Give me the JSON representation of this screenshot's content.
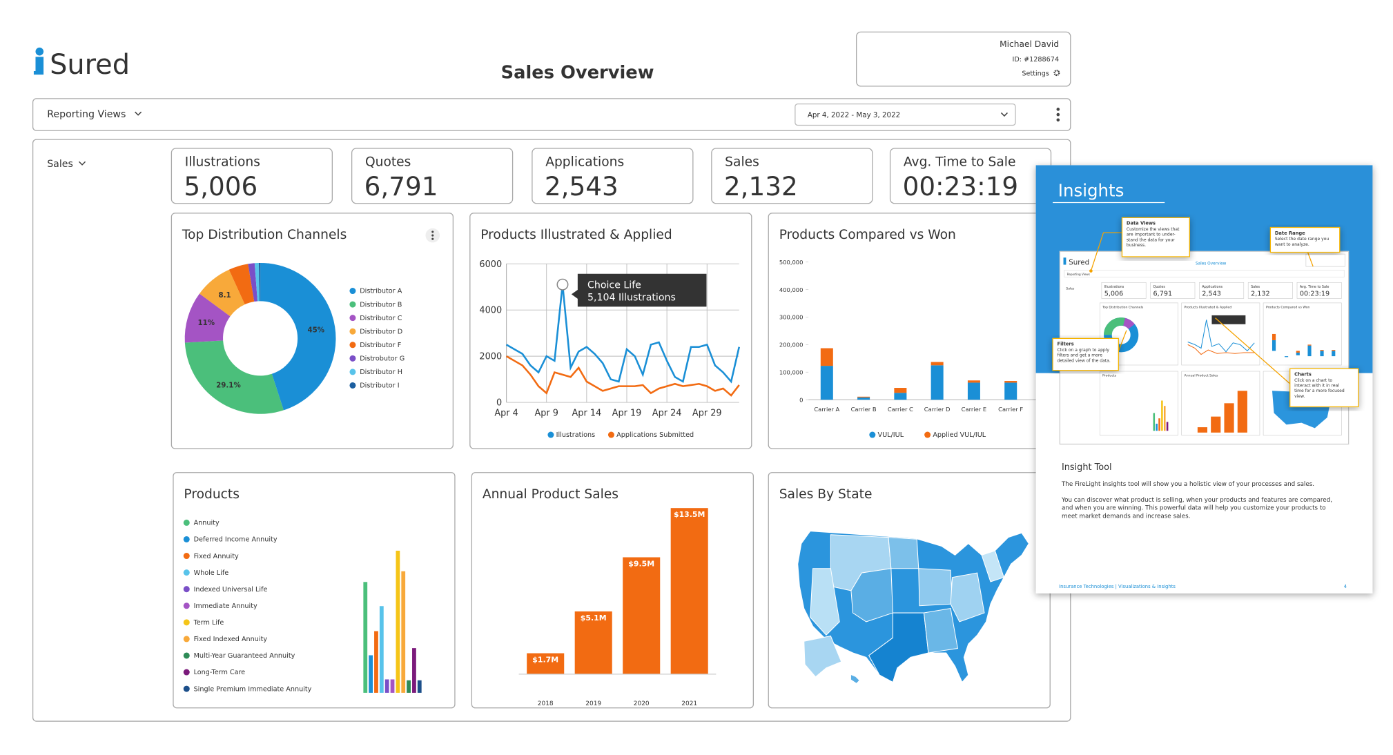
{
  "header": {
    "logo": "Sured",
    "title": "Sales Overview",
    "user_name": "Michael David",
    "user_id": "ID: #1288674",
    "settings": "Settings"
  },
  "toolbar": {
    "reporting_views": "Reporting Views",
    "date_range": "Apr 4, 2022 - May 3, 2022"
  },
  "filter": "Sales",
  "kpis": [
    {
      "label": "Illustrations",
      "value": "5,006"
    },
    {
      "label": "Quotes",
      "value": "6,791"
    },
    {
      "label": "Applications",
      "value": "2,543"
    },
    {
      "label": "Sales",
      "value": "2,132"
    },
    {
      "label": "Avg. Time to Sale",
      "value": "00:23:19"
    }
  ],
  "chart_data": [
    {
      "type": "donut",
      "title": "Top Distribution Channels",
      "categories": [
        "Distributor A",
        "Distributor B",
        "Distributor C",
        "Distributor D",
        "Distributor F",
        "Distrobutor G",
        "Distributor H",
        "Distributor I"
      ],
      "values": [
        45,
        29.1,
        11,
        8.1,
        4.2,
        1.4,
        0.9,
        0.3
      ],
      "value_labels": [
        "45%",
        "29.1%",
        "11%",
        "8.1",
        null,
        null,
        null,
        null
      ],
      "colors": [
        "#1a8fd6",
        "#4bbf7b",
        "#a454c4",
        "#f8a93a",
        "#f26b12",
        "#7a4fc7",
        "#58c3ea",
        "#1c5fa0"
      ]
    },
    {
      "type": "line",
      "title": "Products Illustrated & Applied",
      "x": [
        "Apr 4",
        null,
        null,
        null,
        null,
        "Apr 9",
        null,
        null,
        null,
        null,
        "Apr 14",
        null,
        null,
        null,
        null,
        "Apr 19",
        null,
        null,
        null,
        null,
        "Apr 24",
        null,
        null,
        null,
        null,
        "Apr 29",
        null,
        null,
        null,
        null
      ],
      "series": [
        {
          "name": "Illustrations",
          "color": "#1a8fd6",
          "values": [
            2500,
            2300,
            2100,
            1600,
            1300,
            2000,
            1800,
            5104,
            1500,
            2200,
            2400,
            2100,
            1700,
            1000,
            900,
            2300,
            2000,
            1200,
            2500,
            2600,
            1800,
            1100,
            900,
            2400,
            2400,
            2500,
            1600,
            1300,
            900,
            2400
          ]
        },
        {
          "name": "Applications Submitted",
          "color": "#f26b12",
          "values": [
            2000,
            1800,
            1600,
            1200,
            700,
            400,
            1300,
            1200,
            1100,
            1500,
            900,
            700,
            500,
            600,
            700,
            700,
            700,
            750,
            400,
            600,
            700,
            800,
            700,
            750,
            800,
            700,
            500,
            600,
            300,
            750
          ]
        }
      ],
      "ylim": [
        0,
        6000
      ],
      "yticks": [
        0,
        2000,
        4000,
        6000
      ],
      "grid": true,
      "tooltip": {
        "title": "Choice Life",
        "text": "5,104 Illustrations"
      }
    },
    {
      "type": "stacked_bar",
      "title": "Products Compared vs Won",
      "categories": [
        "Carrier A",
        "Carrier B",
        "Carrier C",
        "Carrier D",
        "Carrier E",
        "Carrier F"
      ],
      "series": [
        {
          "name": "VUL/IUL",
          "color": "#1a8fd6",
          "values": [
            123000,
            8000,
            25000,
            125000,
            62000,
            62000
          ]
        },
        {
          "name": "Applied VUL/IUL",
          "color": "#f26b12",
          "values": [
            64000,
            3000,
            18000,
            12000,
            8000,
            6000
          ]
        }
      ],
      "ylim": [
        0,
        500000
      ],
      "yticks": [
        0,
        {
          "value": 100000,
          "label": "100,000"
        },
        {
          "value": 200000,
          "label": "200,000"
        },
        {
          "value": 300000,
          "label": "300,000"
        },
        {
          "value": 400000,
          "label": "400,000"
        },
        {
          "value": 500000,
          "label": "500,000"
        }
      ]
    },
    {
      "type": "bar",
      "title": "Products",
      "categories": [
        "Annuity",
        "Deferred Income Annuity",
        "Fixed Annuity",
        "Whole Life",
        "Indexed Universal Life",
        "Immediate Annuity",
        "Term Life",
        "Fixed Indexed Annuity",
        "Multi-Year Guaranteed Annuity",
        "Long-Term Care",
        "Single Premium Immediate Annuity"
      ],
      "values": [
        124,
        42,
        69,
        97,
        15,
        15,
        159,
        136,
        14,
        50,
        14
      ],
      "colors": [
        "#4bbf7b",
        "#1a8fd6",
        "#f26b12",
        "#58c3ea",
        "#7a4fc7",
        "#a454c4",
        "#f5c518",
        "#f8a93a",
        "#2e8b57",
        "#7b1a7b",
        "#1c4f8a"
      ]
    },
    {
      "type": "bar",
      "title": "Annual Product Sales",
      "categories": [
        "2018",
        "2019",
        "2020",
        "2021"
      ],
      "values": [
        1700000,
        5100000,
        9500000,
        13500000
      ],
      "value_labels": [
        "$1.7M",
        "$5.1M",
        "$9.5M",
        "$13.5M"
      ],
      "color": "#f26b12"
    },
    {
      "type": "map",
      "title": "Sales By State"
    }
  ],
  "insights": {
    "title": "Insights",
    "callouts": [
      {
        "title": "Data Views",
        "lines": [
          "Customize the views that",
          "are important to under-",
          "stand the data for your",
          "business."
        ]
      },
      {
        "title": "Date Range",
        "lines": [
          "Select the date range you",
          "want to analyze."
        ]
      },
      {
        "title": "Filters",
        "lines": [
          "Click on a graph to apply",
          "filters and get a more",
          "detailed view of the data."
        ]
      },
      {
        "title": "Charts",
        "lines": [
          "Click on a chart to",
          "interact with it in real",
          "time for a more focused",
          "view."
        ]
      }
    ],
    "heading": "Insight Tool",
    "paragraphs": [
      [
        "The FireLight insights tool will show you a holistic view of your processes and sales."
      ],
      [
        "You can discover what product is selling, when your products and features are compared,",
        "and when you are winning. This powerful data will help you customize your products to",
        "meet market demands and increase sales."
      ]
    ],
    "footer": "Insurance Technologies  |  Visualizations & Insights",
    "page": "4"
  }
}
